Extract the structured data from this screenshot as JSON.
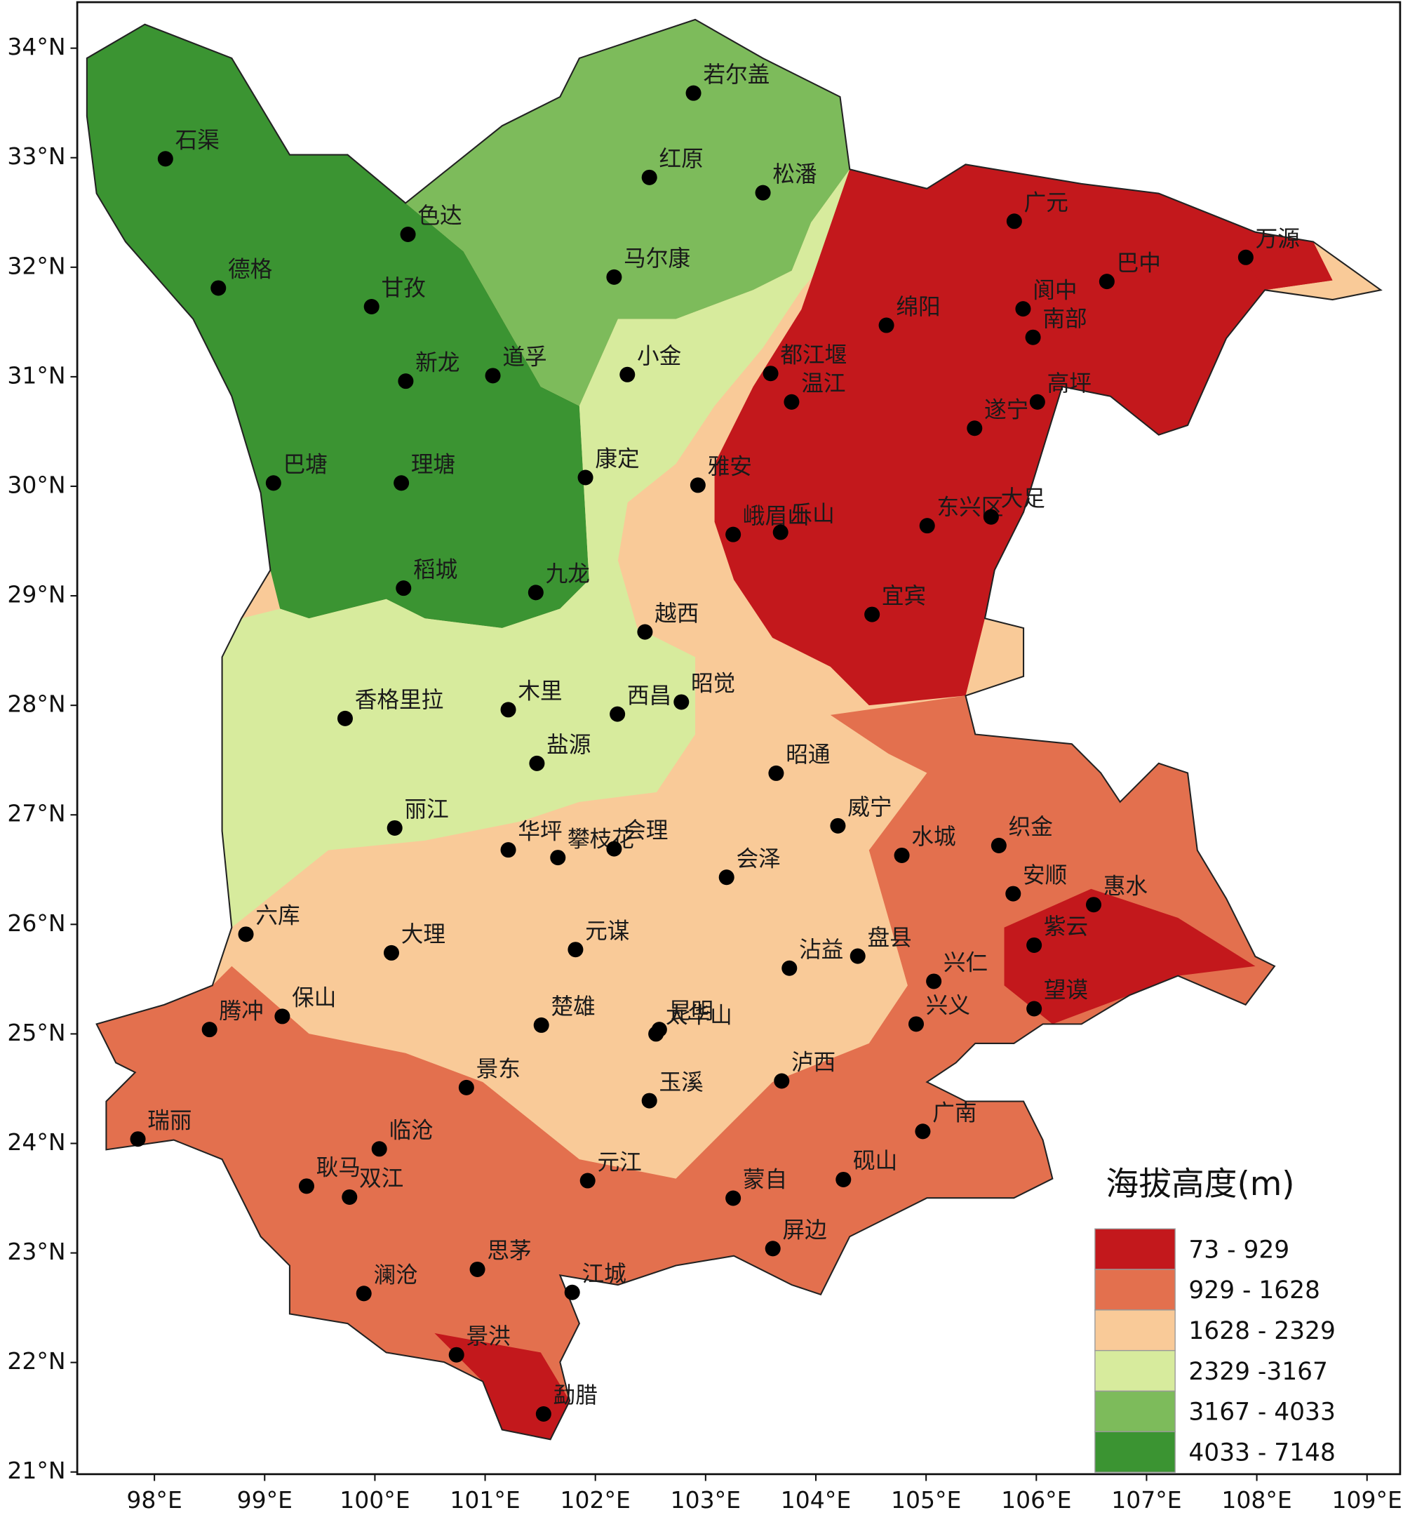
{
  "map": {
    "legend": {
      "title": "海拔高度(m)",
      "items": [
        {
          "label": "73 - 929",
          "color": "#c3181c"
        },
        {
          "label": "929 - 1628",
          "color": "#e3704e"
        },
        {
          "label": "1628 - 2329",
          "color": "#f9ca98"
        },
        {
          "label": "2329 -3167",
          "color": "#d7eb9d"
        },
        {
          "label": "3167 - 4033",
          "color": "#7dbb5b"
        },
        {
          "label": "4033 - 7148",
          "color": "#3b9432"
        }
      ]
    },
    "xlim": [
      97.3,
      109.3
    ],
    "ylim": [
      20.98,
      34.42
    ],
    "xticks": [
      {
        "value": 98,
        "label": "98°E"
      },
      {
        "value": 99,
        "label": "99°E"
      },
      {
        "value": 100,
        "label": "100°E"
      },
      {
        "value": 101,
        "label": "101°E"
      },
      {
        "value": 102,
        "label": "102°E"
      },
      {
        "value": 103,
        "label": "103°E"
      },
      {
        "value": 104,
        "label": "104°E"
      },
      {
        "value": 105,
        "label": "105°E"
      },
      {
        "value": 106,
        "label": "106°E"
      },
      {
        "value": 107,
        "label": "107°E"
      },
      {
        "value": 108,
        "label": "108°E"
      },
      {
        "value": 109,
        "label": "109°E"
      }
    ],
    "yticks": [
      {
        "value": 21,
        "label": "21°N"
      },
      {
        "value": 22,
        "label": "22°N"
      },
      {
        "value": 23,
        "label": "23°N"
      },
      {
        "value": 24,
        "label": "24°N"
      },
      {
        "value": 25,
        "label": "25°N"
      },
      {
        "value": 26,
        "label": "26°N"
      },
      {
        "value": 27,
        "label": "27°N"
      },
      {
        "value": 28,
        "label": "28°N"
      },
      {
        "value": 29,
        "label": "29°N"
      },
      {
        "value": 30,
        "label": "30°N"
      },
      {
        "value": 31,
        "label": "31°N"
      },
      {
        "value": 32,
        "label": "32°N"
      },
      {
        "value": 33,
        "label": "33°N"
      },
      {
        "value": 34,
        "label": "34°N"
      }
    ],
    "stations": [
      {
        "name": "石渠",
        "lon": 98.1,
        "lat": 32.99
      },
      {
        "name": "德格",
        "lon": 98.58,
        "lat": 31.81
      },
      {
        "name": "色达",
        "lon": 100.3,
        "lat": 32.3
      },
      {
        "name": "甘孜",
        "lon": 99.97,
        "lat": 31.64
      },
      {
        "name": "新龙",
        "lon": 100.28,
        "lat": 30.96
      },
      {
        "name": "道孚",
        "lon": 101.07,
        "lat": 31.01
      },
      {
        "name": "巴塘",
        "lon": 99.08,
        "lat": 30.03
      },
      {
        "name": "理塘",
        "lon": 100.24,
        "lat": 30.03
      },
      {
        "name": "稻城",
        "lon": 100.26,
        "lat": 29.07
      },
      {
        "name": "九龙",
        "lon": 101.46,
        "lat": 29.03
      },
      {
        "name": "康定",
        "lon": 101.91,
        "lat": 30.08
      },
      {
        "name": "若尔盖",
        "lon": 102.89,
        "lat": 33.59
      },
      {
        "name": "红原",
        "lon": 102.49,
        "lat": 32.82
      },
      {
        "name": "松潘",
        "lon": 103.52,
        "lat": 32.68
      },
      {
        "name": "马尔康",
        "lon": 102.17,
        "lat": 31.91
      },
      {
        "name": "小金",
        "lon": 102.29,
        "lat": 31.02
      },
      {
        "name": "都江堰",
        "lon": 103.59,
        "lat": 31.03
      },
      {
        "name": "温江",
        "lon": 103.78,
        "lat": 30.77
      },
      {
        "name": "广元",
        "lon": 105.8,
        "lat": 32.42
      },
      {
        "name": "万源",
        "lon": 107.9,
        "lat": 32.09
      },
      {
        "name": "巴中",
        "lon": 106.64,
        "lat": 31.87
      },
      {
        "name": "绵阳",
        "lon": 104.64,
        "lat": 31.47
      },
      {
        "name": "阆中",
        "lon": 105.88,
        "lat": 31.62
      },
      {
        "name": "南部",
        "lon": 105.97,
        "lat": 31.36
      },
      {
        "name": "高坪",
        "lon": 106.01,
        "lat": 30.77
      },
      {
        "name": "遂宁",
        "lon": 105.44,
        "lat": 30.53
      },
      {
        "name": "雅安",
        "lon": 102.93,
        "lat": 30.01
      },
      {
        "name": "峨眉山",
        "lon": 103.25,
        "lat": 29.56
      },
      {
        "name": "乐山",
        "lon": 103.68,
        "lat": 29.58
      },
      {
        "name": "东兴区",
        "lon": 105.01,
        "lat": 29.64
      },
      {
        "name": "大足",
        "lon": 105.59,
        "lat": 29.72
      },
      {
        "name": "宜宾",
        "lon": 104.51,
        "lat": 28.83
      },
      {
        "name": "越西",
        "lon": 102.45,
        "lat": 28.67
      },
      {
        "name": "木里",
        "lon": 101.21,
        "lat": 27.96
      },
      {
        "name": "西昌",
        "lon": 102.2,
        "lat": 27.92
      },
      {
        "name": "昭觉",
        "lon": 102.78,
        "lat": 28.03
      },
      {
        "name": "盐源",
        "lon": 101.47,
        "lat": 27.47
      },
      {
        "name": "香格里拉",
        "lon": 99.73,
        "lat": 27.88
      },
      {
        "name": "昭通",
        "lon": 103.64,
        "lat": 27.38
      },
      {
        "name": "丽江",
        "lon": 100.18,
        "lat": 26.88
      },
      {
        "name": "华坪",
        "lon": 101.21,
        "lat": 26.68
      },
      {
        "name": "攀枝花",
        "lon": 101.66,
        "lat": 26.61
      },
      {
        "name": "会理",
        "lon": 102.17,
        "lat": 26.69
      },
      {
        "name": "会泽",
        "lon": 103.19,
        "lat": 26.43
      },
      {
        "name": "威宁",
        "lon": 104.2,
        "lat": 26.9
      },
      {
        "name": "水城",
        "lon": 104.78,
        "lat": 26.63
      },
      {
        "name": "织金",
        "lon": 105.66,
        "lat": 26.72
      },
      {
        "name": "安顺",
        "lon": 105.79,
        "lat": 26.28
      },
      {
        "name": "惠水",
        "lon": 106.52,
        "lat": 26.18
      },
      {
        "name": "紫云",
        "lon": 105.98,
        "lat": 25.81
      },
      {
        "name": "沾益",
        "lon": 103.76,
        "lat": 25.6
      },
      {
        "name": "盘县",
        "lon": 104.38,
        "lat": 25.71
      },
      {
        "name": "兴仁",
        "lon": 105.07,
        "lat": 25.48
      },
      {
        "name": "兴义",
        "lon": 104.91,
        "lat": 25.09
      },
      {
        "name": "望谟",
        "lon": 105.98,
        "lat": 25.23
      },
      {
        "name": "六库",
        "lon": 98.83,
        "lat": 25.91
      },
      {
        "name": "大理",
        "lon": 100.15,
        "lat": 25.74
      },
      {
        "name": "元谋",
        "lon": 101.82,
        "lat": 25.77
      },
      {
        "name": "腾冲",
        "lon": 98.5,
        "lat": 25.04
      },
      {
        "name": "保山",
        "lon": 99.16,
        "lat": 25.16
      },
      {
        "name": "楚雄",
        "lon": 101.51,
        "lat": 25.08
      },
      {
        "name": "昆明",
        "lon": 102.58,
        "lat": 25.04
      },
      {
        "name": "太华山",
        "lon": 102.55,
        "lat": 25.0
      },
      {
        "name": "泸西",
        "lon": 103.69,
        "lat": 24.57
      },
      {
        "name": "玉溪",
        "lon": 102.49,
        "lat": 24.39
      },
      {
        "name": "景东",
        "lon": 100.83,
        "lat": 24.51
      },
      {
        "name": "瑞丽",
        "lon": 97.85,
        "lat": 24.04
      },
      {
        "name": "临沧",
        "lon": 100.04,
        "lat": 23.95
      },
      {
        "name": "耿马",
        "lon": 99.38,
        "lat": 23.61
      },
      {
        "name": "双江",
        "lon": 99.77,
        "lat": 23.51
      },
      {
        "name": "元江",
        "lon": 101.93,
        "lat": 23.66
      },
      {
        "name": "蒙自",
        "lon": 103.25,
        "lat": 23.5
      },
      {
        "name": "砚山",
        "lon": 104.25,
        "lat": 23.67
      },
      {
        "name": "广南",
        "lon": 104.97,
        "lat": 24.11
      },
      {
        "name": "屏边",
        "lon": 103.61,
        "lat": 23.04
      },
      {
        "name": "思茅",
        "lon": 100.93,
        "lat": 22.85
      },
      {
        "name": "澜沧",
        "lon": 99.9,
        "lat": 22.63
      },
      {
        "name": "江城",
        "lon": 101.79,
        "lat": 22.64
      },
      {
        "name": "景洪",
        "lon": 100.74,
        "lat": 22.07
      },
      {
        "name": "勐腊",
        "lon": 101.53,
        "lat": 21.53
      }
    ]
  }
}
